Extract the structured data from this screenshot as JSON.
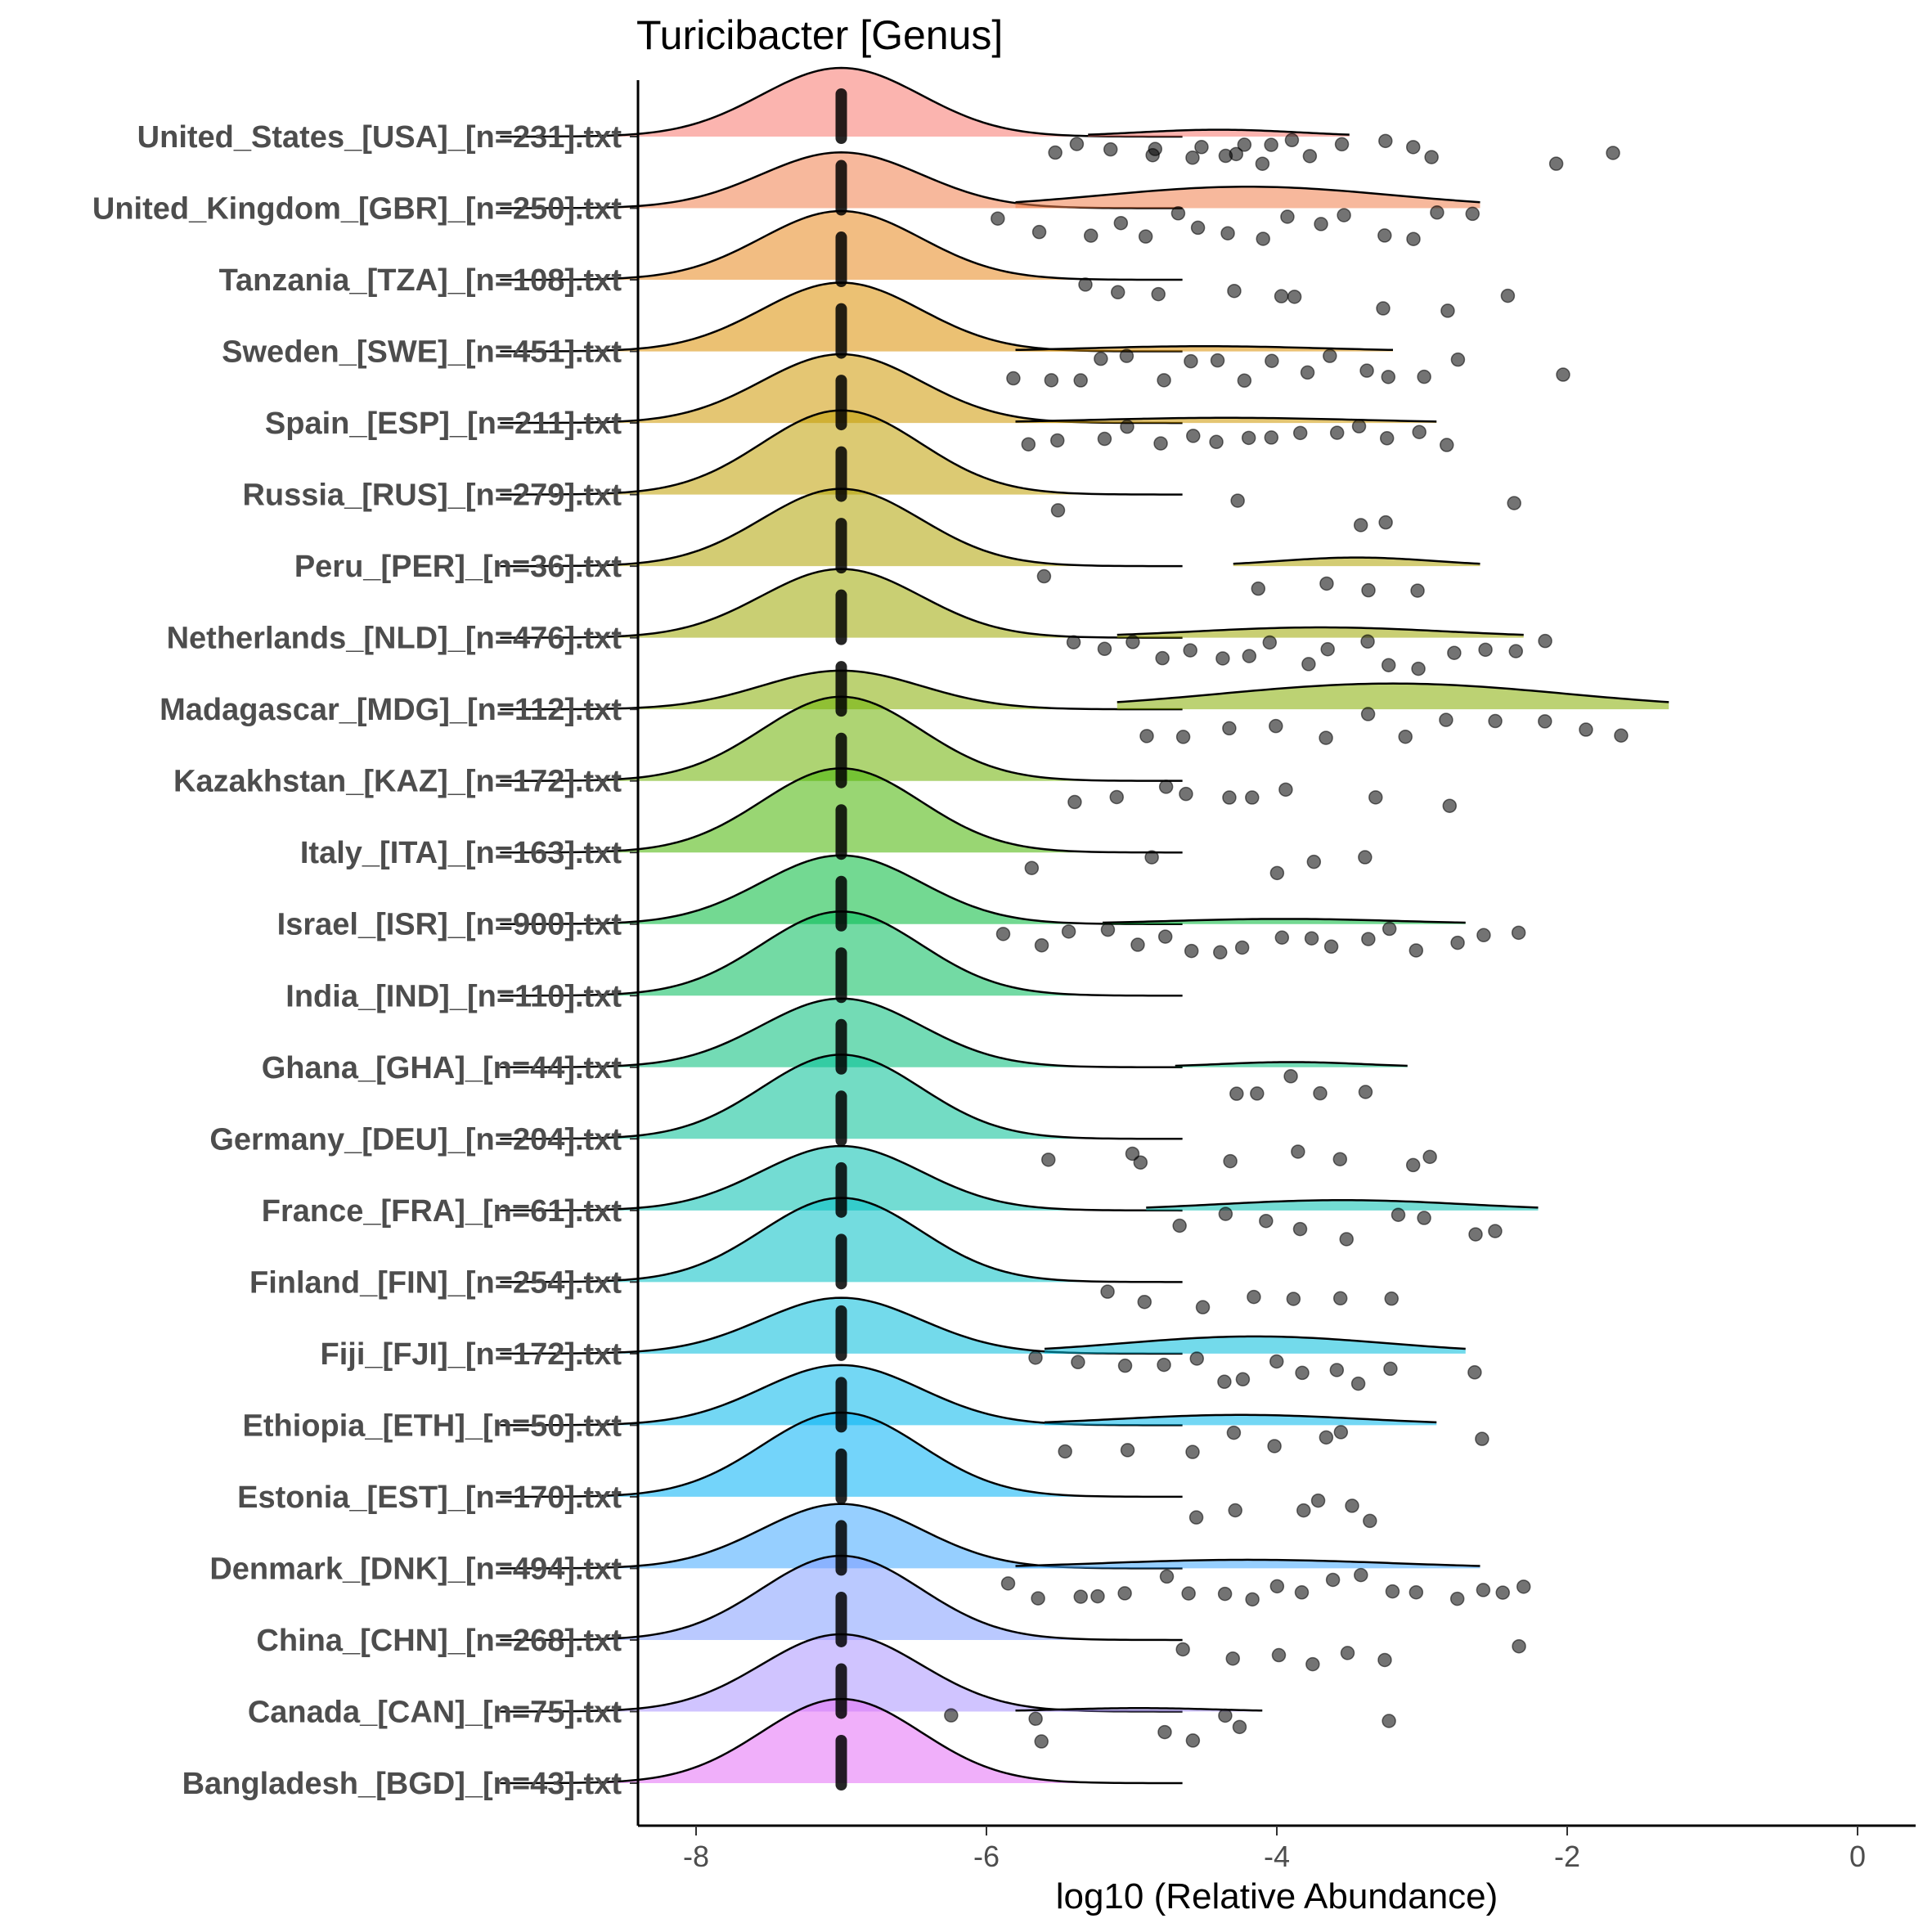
{
  "chart_data": {
    "type": "ridgeline",
    "title": "Turicibacter [Genus]",
    "xlabel": "log10 (Relative Abundance)",
    "ylabel": "",
    "xlim": [
      -8.4,
      0.4
    ],
    "xticks": [
      -8,
      -6,
      -4,
      -2,
      0
    ],
    "xtick_labels": [
      "-8",
      "-6",
      "-4",
      "-2",
      "0"
    ],
    "point_color": "#000000",
    "zero_value": -7.0,
    "series": [
      {
        "name": "United_States_[USA]_[n=231].txt",
        "color": "#F8766D",
        "peak": 0.8,
        "nz_peak": 0.08,
        "nz_range": [
          -5.3,
          -3.5
        ],
        "points": [
          -5.5,
          -5.4,
          -5.1,
          -4.9,
          -4.8,
          -4.6,
          -4.5,
          -4.4,
          -4.3,
          -4.2,
          -4.1,
          -4.0,
          -3.9,
          -3.8,
          -3.6,
          -3.3,
          -3.1,
          -2.9,
          -2.1,
          -1.7
        ]
      },
      {
        "name": "United_Kingdom_[GBR]_[n=250].txt",
        "color": "#F07E4A",
        "peak": 0.65,
        "nz_peak": 0.25,
        "nz_range": [
          -5.8,
          -2.6
        ],
        "points": [
          -5.9,
          -5.6,
          -5.3,
          -5.1,
          -4.9,
          -4.7,
          -4.5,
          -4.3,
          -4.1,
          -3.9,
          -3.7,
          -3.5,
          -3.3,
          -3.1,
          -2.9,
          -2.7
        ]
      },
      {
        "name": "Tanzania_[TZA]_[n=108].txt",
        "color": "#E7861B",
        "peak": 0.8,
        "nz_peak": 0,
        "points": [
          -5.3,
          -5.1,
          -4.8,
          -4.3,
          -4.0,
          -3.9,
          -3.3,
          -2.8,
          -2.4
        ]
      },
      {
        "name": "Sweden_[SWE]_[n=451].txt",
        "color": "#DB8E00",
        "peak": 0.8,
        "nz_peak": 0.06,
        "nz_range": [
          -5.8,
          -3.2
        ],
        "points": [
          -5.8,
          -5.6,
          -5.4,
          -5.2,
          -5.0,
          -4.8,
          -4.6,
          -4.4,
          -4.2,
          -4.0,
          -3.8,
          -3.6,
          -3.4,
          -3.2,
          -3.0,
          -2.8,
          -2.0
        ]
      },
      {
        "name": "Spain_[ESP]_[n=211].txt",
        "color": "#CE9700",
        "peak": 0.8,
        "nz_peak": 0.06,
        "nz_range": [
          -5.8,
          -2.9
        ],
        "points": [
          -5.7,
          -5.5,
          -5.2,
          -5.0,
          -4.8,
          -4.6,
          -4.4,
          -4.2,
          -4.0,
          -3.8,
          -3.6,
          -3.4,
          -3.2,
          -3.0,
          -2.8
        ]
      },
      {
        "name": "Russia_[RUS]_[n=279].txt",
        "color": "#C09F00",
        "peak": 0.98,
        "nz_peak": 0,
        "points": [
          -5.5,
          -4.3,
          -3.4,
          -3.2,
          -2.4
        ]
      },
      {
        "name": "Peru_[PER]_[n=36].txt",
        "color": "#AEA200",
        "peak": 0.9,
        "nz_peak": 0.1,
        "nz_range": [
          -4.3,
          -2.6
        ],
        "points": [
          -5.6,
          -4.1,
          -3.7,
          -3.4,
          -3.0
        ]
      },
      {
        "name": "Netherlands_[NLD]_[n=476].txt",
        "color": "#9CA700",
        "peak": 0.8,
        "nz_peak": 0.12,
        "nz_range": [
          -5.1,
          -2.3
        ],
        "points": [
          -5.4,
          -5.2,
          -5.0,
          -4.8,
          -4.6,
          -4.4,
          -4.2,
          -4.0,
          -3.8,
          -3.6,
          -3.4,
          -3.2,
          -3.0,
          -2.8,
          -2.6,
          -2.4,
          -2.2
        ]
      },
      {
        "name": "Madagascar_[MDG]_[n=112].txt",
        "color": "#85AD00",
        "peak": 0.45,
        "nz_peak": 0.3,
        "nz_range": [
          -5.1,
          -1.3
        ],
        "points": [
          -4.9,
          -4.6,
          -4.3,
          -4.0,
          -3.7,
          -3.4,
          -3.1,
          -2.8,
          -2.5,
          -2.2,
          -1.9,
          -1.6
        ]
      },
      {
        "name": "Kazakhstan_[KAZ]_[n=172].txt",
        "color": "#6BB100",
        "peak": 0.98,
        "nz_peak": 0,
        "points": [
          -5.4,
          -5.1,
          -4.8,
          -4.6,
          -4.3,
          -4.2,
          -3.9,
          -3.3,
          -2.8
        ]
      },
      {
        "name": "Italy_[ITA]_[n=163].txt",
        "color": "#45B500",
        "peak": 0.98,
        "nz_peak": 0,
        "points": [
          -5.7,
          -4.9,
          -4.0,
          -3.7,
          -3.4
        ]
      },
      {
        "name": "Israel_[ISR]_[n=900].txt",
        "color": "#00BA38",
        "peak": 0.8,
        "nz_peak": 0.06,
        "nz_range": [
          -5.2,
          -2.7
        ],
        "points": [
          -5.9,
          -5.6,
          -5.4,
          -5.2,
          -5.0,
          -4.8,
          -4.6,
          -4.4,
          -4.2,
          -4.0,
          -3.8,
          -3.6,
          -3.4,
          -3.2,
          -3.0,
          -2.8,
          -2.6,
          -2.3
        ]
      },
      {
        "name": "India_[IND]_[n=110].txt",
        "color": "#00BC5A",
        "peak": 0.98,
        "nz_peak": 0,
        "points": []
      },
      {
        "name": "Ghana_[GHA]_[n=44].txt",
        "color": "#00BE78",
        "peak": 0.8,
        "nz_peak": 0.06,
        "nz_range": [
          -4.7,
          -3.1
        ],
        "points": [
          -4.3,
          -4.1,
          -3.9,
          -3.7,
          -3.4
        ]
      },
      {
        "name": "Germany_[DEU]_[n=204].txt",
        "color": "#00C094",
        "peak": 0.98,
        "nz_peak": 0,
        "points": [
          -5.6,
          -5.0,
          -4.9,
          -4.3,
          -3.9,
          -3.6,
          -3.1,
          -2.9
        ]
      },
      {
        "name": "France_[FRA]_[n=61].txt",
        "color": "#00C0AE",
        "peak": 0.75,
        "nz_peak": 0.12,
        "nz_range": [
          -4.9,
          -2.2
        ],
        "points": [
          -4.7,
          -4.4,
          -4.1,
          -3.8,
          -3.5,
          -3.2,
          -3.0,
          -2.6,
          -2.5
        ]
      },
      {
        "name": "Finland_[FIN]_[n=254].txt",
        "color": "#00BFC4",
        "peak": 0.98,
        "nz_peak": 0,
        "points": [
          -5.2,
          -4.9,
          -4.5,
          -4.2,
          -3.9,
          -3.6,
          -3.2
        ]
      },
      {
        "name": "Fiji_[FJI]_[n=172].txt",
        "color": "#00BBDA",
        "peak": 0.65,
        "nz_peak": 0.2,
        "nz_range": [
          -5.6,
          -2.7
        ],
        "points": [
          -5.7,
          -5.4,
          -5.0,
          -4.8,
          -4.6,
          -4.4,
          -4.2,
          -4.0,
          -3.8,
          -3.6,
          -3.4,
          -3.2,
          -2.6
        ]
      },
      {
        "name": "Ethiopia_[ETH]_[n=50].txt",
        "color": "#00B6EB",
        "peak": 0.7,
        "nz_peak": 0.12,
        "nz_range": [
          -5.6,
          -2.9
        ],
        "points": [
          -5.5,
          -5.0,
          -4.6,
          -4.3,
          -4.0,
          -3.7,
          -3.6,
          -2.6
        ]
      },
      {
        "name": "Estonia_[EST]_[n=170].txt",
        "color": "#00B0F6",
        "peak": 0.98,
        "nz_peak": 0,
        "points": [
          -4.6,
          -4.3,
          -3.8,
          -3.7,
          -3.5,
          -3.4
        ]
      },
      {
        "name": "Denmark_[DNK]_[n=494].txt",
        "color": "#40A7FF",
        "peak": 0.75,
        "nz_peak": 0.1,
        "nz_range": [
          -5.8,
          -2.6
        ],
        "points": [
          -5.9,
          -5.6,
          -5.4,
          -5.2,
          -5.0,
          -4.8,
          -4.6,
          -4.4,
          -4.2,
          -4.0,
          -3.8,
          -3.6,
          -3.4,
          -3.2,
          -3.0,
          -2.8,
          -2.6,
          -2.4,
          -2.3
        ]
      },
      {
        "name": "China_[CHN]_[n=268].txt",
        "color": "#829DFF",
        "peak": 0.98,
        "nz_peak": 0,
        "points": [
          -4.6,
          -4.3,
          -4.0,
          -3.8,
          -3.5,
          -3.3,
          -2.3
        ]
      },
      {
        "name": "Canada_[CAN]_[n=75].txt",
        "color": "#AA94FF",
        "peak": 0.9,
        "nz_peak": 0.04,
        "nz_range": [
          -5.8,
          -4.1
        ],
        "points": [
          -6.2,
          -5.7,
          -5.6,
          -4.8,
          -4.6,
          -4.4,
          -4.3,
          -3.2
        ]
      },
      {
        "name": "Bangladesh_[BGD]_[n=43].txt",
        "color": "#E36EF6",
        "peak": 0.98,
        "nz_peak": 0,
        "points": []
      }
    ]
  }
}
